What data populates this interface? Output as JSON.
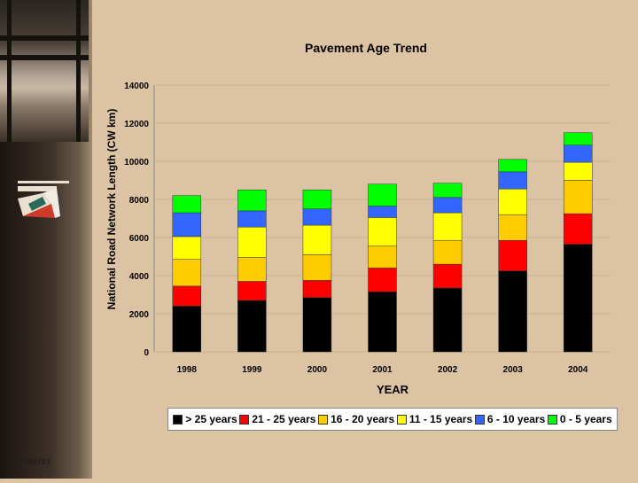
{
  "slide": {
    "id_label": "#183763"
  },
  "chart_data": {
    "type": "bar",
    "stacked": true,
    "title": "Pavement Age Trend",
    "xlabel": "YEAR",
    "ylabel": "National Road Network Length (CW km)",
    "ylim": [
      0,
      14000
    ],
    "yticks": [
      0,
      2000,
      4000,
      6000,
      8000,
      10000,
      12000,
      14000
    ],
    "categories": [
      "1998",
      "1999",
      "2000",
      "2001",
      "2002",
      "2003",
      "2004"
    ],
    "series": [
      {
        "name": "> 25 years",
        "color": "#000000",
        "values": [
          2400,
          2700,
          2850,
          3150,
          3350,
          4250,
          5650
        ]
      },
      {
        "name": "21 - 25 years",
        "color": "#ff0000",
        "values": [
          1050,
          1000,
          900,
          1250,
          1250,
          1600,
          1600
        ]
      },
      {
        "name": "16 - 20 years",
        "color": "#ffcc00",
        "values": [
          1400,
          1250,
          1350,
          1150,
          1250,
          1350,
          1750
        ]
      },
      {
        "name": "11 - 15 years",
        "color": "#ffff00",
        "values": [
          1200,
          1600,
          1550,
          1500,
          1450,
          1350,
          950
        ]
      },
      {
        "name": "6 - 10 years",
        "color": "#3366ff",
        "values": [
          1250,
          850,
          850,
          600,
          800,
          900,
          900
        ]
      },
      {
        "name": "0 - 5 years",
        "color": "#00ff00",
        "values": [
          900,
          1100,
          1000,
          1150,
          750,
          650,
          650
        ]
      }
    ],
    "legend_position": "bottom"
  }
}
